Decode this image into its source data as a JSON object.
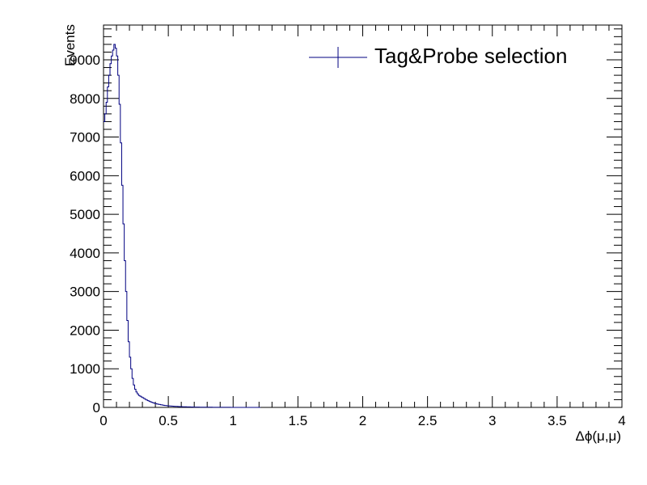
{
  "chart_data": {
    "type": "line",
    "style": "step-histogram",
    "title": "",
    "xlabel": "Δϕ(μ,μ)",
    "ylabel": "Events",
    "xlim": [
      0,
      4
    ],
    "ylim": [
      0,
      9900
    ],
    "x_ticks": [
      0,
      0.5,
      1,
      1.5,
      2,
      2.5,
      3,
      3.5,
      4
    ],
    "x_tick_labels": [
      "0",
      "0.5",
      "1",
      "1.5",
      "2",
      "2.5",
      "3",
      "3.5",
      "4"
    ],
    "y_ticks": [
      0,
      1000,
      2000,
      3000,
      4000,
      5000,
      6000,
      7000,
      8000,
      9000
    ],
    "y_tick_labels": [
      "0",
      "1000",
      "2000",
      "3000",
      "4000",
      "5000",
      "6000",
      "7000",
      "8000",
      "9000"
    ],
    "legend_position": "top-right",
    "bin_width": 0.01,
    "series": [
      {
        "name": "Tag&Probe selection",
        "color": "#000080",
        "bin_low_edges": [
          0.0,
          0.01,
          0.02,
          0.03,
          0.04,
          0.05,
          0.06,
          0.07,
          0.08,
          0.09,
          0.1,
          0.11,
          0.12,
          0.13,
          0.14,
          0.15,
          0.16,
          0.17,
          0.18,
          0.19,
          0.2,
          0.21,
          0.22,
          0.23,
          0.24,
          0.25,
          0.26,
          0.27,
          0.28,
          0.29,
          0.3,
          0.31,
          0.32,
          0.33,
          0.34,
          0.35,
          0.36,
          0.37,
          0.38,
          0.39,
          0.4,
          0.41,
          0.42,
          0.43,
          0.44,
          0.45,
          0.46,
          0.47,
          0.48,
          0.49,
          0.5,
          0.51,
          0.52,
          0.53,
          0.54,
          0.55,
          0.56,
          0.57,
          0.58,
          0.59,
          0.6,
          0.61,
          0.62,
          0.63,
          0.64,
          0.65,
          0.66,
          0.67,
          0.68,
          0.69,
          0.7,
          0.72,
          0.74,
          0.76,
          0.78,
          0.8,
          0.82,
          0.84,
          0.86,
          0.88,
          0.9,
          0.92,
          0.94,
          0.96,
          0.98,
          1.0,
          1.05,
          1.1,
          1.15,
          1.2
        ],
        "values": [
          7400,
          7600,
          7900,
          8300,
          8600,
          8900,
          9100,
          9250,
          9400,
          9300,
          9100,
          8600,
          7850,
          6850,
          5750,
          4750,
          3800,
          3000,
          2250,
          1700,
          1300,
          1000,
          750,
          580,
          470,
          400,
          350,
          310,
          290,
          270,
          250,
          230,
          210,
          190,
          175,
          160,
          145,
          130,
          118,
          108,
          98,
          90,
          82,
          75,
          68,
          62,
          56,
          51,
          47,
          43,
          40,
          37,
          34,
          31,
          29,
          27,
          25,
          23,
          21,
          19,
          18,
          17,
          16,
          15,
          14,
          13,
          12,
          11,
          10,
          9,
          8,
          7,
          6,
          5,
          5,
          4,
          4,
          3,
          3,
          3,
          2,
          2,
          2,
          2,
          1,
          1,
          1,
          1,
          0,
          0
        ]
      }
    ]
  }
}
